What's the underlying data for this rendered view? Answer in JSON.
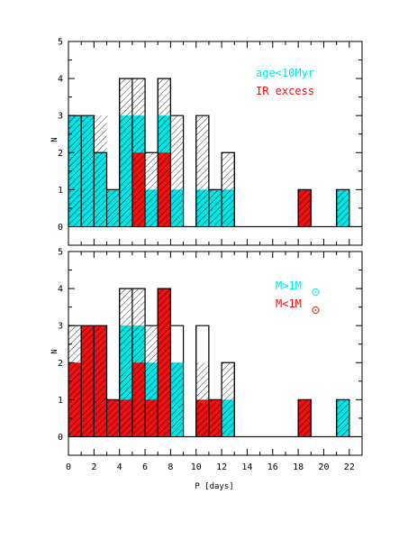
{
  "chart_data": [
    {
      "type": "bar",
      "panel": "top",
      "xlabel": "P [days]",
      "ylabel": "N",
      "xlim": [
        0,
        23
      ],
      "ylim": [
        -0.5,
        5
      ],
      "bin_width": 1,
      "bins": [
        0,
        1,
        2,
        3,
        4,
        5,
        6,
        7,
        8,
        9,
        10,
        11,
        12,
        13,
        14,
        15,
        16,
        17,
        18,
        19,
        20,
        21,
        22
      ],
      "series": [
        {
          "legend": "",
          "style": "hatched-outline",
          "values": [
            3,
            3,
            3,
            1,
            4,
            4,
            2,
            4,
            3,
            0,
            3,
            1,
            2,
            0,
            0,
            0,
            0,
            0,
            1,
            0,
            0,
            1,
            0
          ]
        },
        {
          "legend": "",
          "style": "outline",
          "values": [
            3,
            3,
            2,
            1,
            4,
            4,
            2,
            4,
            3,
            0,
            3,
            1,
            2,
            0,
            0,
            0,
            0,
            0,
            1,
            0,
            0,
            1,
            0
          ]
        },
        {
          "name": "age<10Myr",
          "color": "#00e5e5",
          "style": "filled",
          "values": [
            3,
            3,
            2,
            1,
            3,
            3,
            1,
            3,
            1,
            0,
            1,
            1,
            1,
            0,
            0,
            0,
            0,
            0,
            0,
            0,
            0,
            1,
            0
          ]
        },
        {
          "name": "IR excess",
          "color": "#ee1111",
          "style": "filled",
          "values": [
            0,
            0,
            0,
            0,
            0,
            2,
            0,
            2,
            0,
            0,
            0,
            0,
            0,
            0,
            0,
            0,
            0,
            0,
            1,
            0,
            0,
            0,
            0
          ]
        }
      ],
      "xticks": [
        "0",
        "2",
        "4",
        "6",
        "8",
        "10",
        "12",
        "14",
        "16",
        "18",
        "20",
        "22"
      ],
      "yticks": [
        "0",
        "1",
        "2",
        "3",
        "4",
        "5"
      ],
      "grid": false,
      "legend_position": "top-right"
    },
    {
      "type": "bar",
      "panel": "bottom",
      "xlabel": "P [days]",
      "ylabel": "N",
      "xlim": [
        0,
        23
      ],
      "ylim": [
        -0.5,
        5
      ],
      "bin_width": 1,
      "bins": [
        0,
        1,
        2,
        3,
        4,
        5,
        6,
        7,
        8,
        9,
        10,
        11,
        12,
        13,
        14,
        15,
        16,
        17,
        18,
        19,
        20,
        21,
        22
      ],
      "series": [
        {
          "legend": "",
          "style": "hatched-outline",
          "values": [
            3,
            3,
            3,
            1,
            4,
            4,
            3,
            4,
            2,
            0,
            2,
            1,
            2,
            0,
            0,
            0,
            0,
            0,
            1,
            0,
            0,
            1,
            0
          ]
        },
        {
          "legend": "",
          "style": "outline",
          "values": [
            3,
            3,
            3,
            1,
            4,
            4,
            3,
            4,
            3,
            0,
            3,
            1,
            2,
            0,
            0,
            0,
            0,
            0,
            1,
            0,
            0,
            1,
            0
          ]
        },
        {
          "name": "M>1M☉",
          "color": "#00e5e5",
          "style": "filled",
          "values": [
            1,
            0,
            0,
            0,
            3,
            3,
            2,
            0,
            2,
            0,
            0,
            0,
            1,
            0,
            0,
            0,
            0,
            0,
            0,
            0,
            0,
            1,
            0
          ]
        },
        {
          "name": "M<1M☉",
          "color": "#ee1111",
          "style": "filled",
          "values": [
            2,
            3,
            3,
            1,
            1,
            2,
            1,
            4,
            0,
            0,
            1,
            1,
            0,
            0,
            0,
            0,
            0,
            0,
            1,
            0,
            0,
            0,
            0
          ]
        }
      ],
      "xticks": [
        "0",
        "2",
        "4",
        "6",
        "8",
        "10",
        "12",
        "14",
        "16",
        "18",
        "20",
        "22"
      ],
      "yticks": [
        "0",
        "1",
        "2",
        "3",
        "4",
        "5"
      ],
      "grid": false,
      "legend_position": "top-right"
    }
  ],
  "labels": {
    "x_axis_title": "P [days]",
    "y_axis_title_top": "N",
    "y_axis_title_bottom": "N",
    "legend_top_1": "age<10Myr",
    "legend_top_2": "IR excess",
    "legend_bottom_1": "M>1M",
    "legend_bottom_2": "M<1M"
  },
  "colors": {
    "cyan": "#00e5e5",
    "red": "#ee1111",
    "line": "#000000"
  }
}
